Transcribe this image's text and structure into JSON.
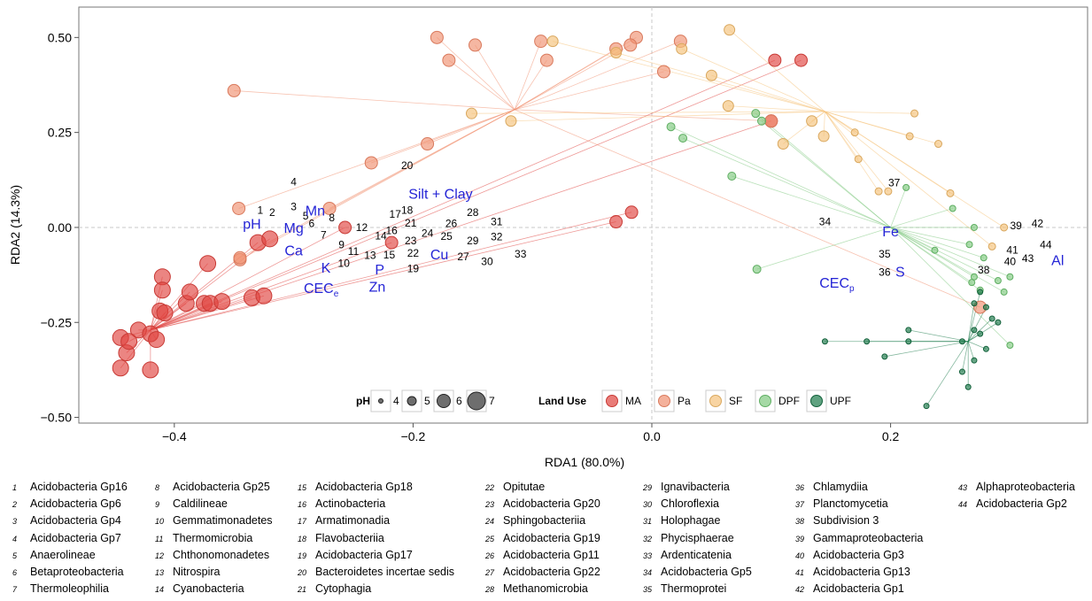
{
  "chart_data": {
    "type": "scatter",
    "xlabel": "RDA1 (80.0%)",
    "ylabel": "RDA2 (14.3%)",
    "xlim": [
      -0.48,
      0.365
    ],
    "ylim": [
      -0.515,
      0.58
    ],
    "x_ticks": [
      "−0.4",
      "−0.2",
      "0.0",
      "0.2"
    ],
    "y_ticks": [
      "0.50",
      "0.25",
      "0.00",
      "−0.25",
      "−0.50"
    ],
    "grid": false,
    "reference_lines": "dashed lines at x=0 and y=0",
    "colors": {
      "MA": "#e0443f",
      "Pa": "#f09070",
      "SF": "#f5c27a",
      "DPF": "#7fc97f",
      "UPF": "#1b7a4a"
    },
    "centroids": {
      "MA": [
        -0.42,
        -0.27
      ],
      "Pa": [
        -0.115,
        0.31
      ],
      "SF": [
        0.145,
        0.305
      ],
      "DPF": [
        0.2,
        0.0
      ],
      "UPF": [
        0.265,
        -0.3
      ]
    },
    "sites": {
      "MA": [
        [
          -0.445,
          -0.37
        ],
        [
          -0.44,
          -0.33
        ],
        [
          -0.445,
          -0.29
        ],
        [
          -0.42,
          -0.375
        ],
        [
          -0.43,
          -0.27
        ],
        [
          -0.438,
          -0.3
        ],
        [
          -0.42,
          -0.28
        ],
        [
          -0.415,
          -0.295
        ],
        [
          -0.412,
          -0.22
        ],
        [
          -0.408,
          -0.225
        ],
        [
          -0.41,
          -0.13
        ],
        [
          -0.41,
          -0.165
        ],
        [
          -0.39,
          -0.2
        ],
        [
          -0.387,
          -0.17
        ],
        [
          -0.375,
          -0.2
        ],
        [
          -0.37,
          -0.2
        ],
        [
          -0.36,
          -0.195
        ],
        [
          -0.335,
          -0.185
        ],
        [
          -0.325,
          -0.18
        ],
        [
          -0.33,
          -0.04
        ],
        [
          -0.32,
          -0.03
        ],
        [
          -0.257,
          0.0
        ],
        [
          -0.218,
          -0.04
        ],
        [
          -0.372,
          -0.095
        ],
        [
          -0.03,
          0.015
        ],
        [
          -0.017,
          0.04
        ],
        [
          0.103,
          0.44
        ],
        [
          0.125,
          0.44
        ],
        [
          0.1,
          0.28
        ]
      ],
      "Pa": [
        [
          -0.27,
          0.05
        ],
        [
          -0.35,
          0.36
        ],
        [
          -0.18,
          0.5
        ],
        [
          -0.17,
          0.44
        ],
        [
          -0.148,
          0.48
        ],
        [
          -0.093,
          0.49
        ],
        [
          -0.088,
          0.44
        ],
        [
          -0.03,
          0.47
        ],
        [
          -0.013,
          0.5
        ],
        [
          -0.018,
          0.48
        ],
        [
          0.01,
          0.41
        ],
        [
          0.024,
          0.49
        ],
        [
          -0.235,
          0.17
        ],
        [
          -0.188,
          0.22
        ],
        [
          -0.346,
          0.05
        ],
        [
          -0.345,
          -0.085
        ],
        [
          -0.345,
          -0.08
        ],
        [
          0.1,
          0.28
        ],
        [
          0.275,
          -0.21
        ]
      ],
      "SF": [
        [
          -0.151,
          0.3
        ],
        [
          -0.083,
          0.49
        ],
        [
          -0.118,
          0.28
        ],
        [
          -0.03,
          0.46
        ],
        [
          0.025,
          0.47
        ],
        [
          0.05,
          0.4
        ],
        [
          0.065,
          0.52
        ],
        [
          0.064,
          0.32
        ],
        [
          0.11,
          0.22
        ],
        [
          0.134,
          0.28
        ],
        [
          0.144,
          0.24
        ],
        [
          0.17,
          0.25
        ],
        [
          0.173,
          0.18
        ],
        [
          0.19,
          0.095
        ],
        [
          0.198,
          0.095
        ],
        [
          0.22,
          0.3
        ],
        [
          0.216,
          0.24
        ],
        [
          0.24,
          0.22
        ],
        [
          0.25,
          0.09
        ],
        [
          0.295,
          0.0
        ],
        [
          0.285,
          -0.05
        ]
      ],
      "DPF": [
        [
          0.016,
          0.265
        ],
        [
          0.026,
          0.235
        ],
        [
          0.087,
          0.3
        ],
        [
          0.092,
          0.28
        ],
        [
          0.067,
          0.135
        ],
        [
          0.213,
          0.105
        ],
        [
          0.252,
          0.05
        ],
        [
          0.27,
          0.0
        ],
        [
          0.237,
          -0.06
        ],
        [
          0.266,
          -0.045
        ],
        [
          0.278,
          -0.08
        ],
        [
          0.29,
          -0.14
        ],
        [
          0.3,
          -0.13
        ],
        [
          0.268,
          -0.145
        ],
        [
          0.275,
          -0.165
        ],
        [
          0.295,
          -0.17
        ],
        [
          0.3,
          -0.31
        ],
        [
          0.088,
          -0.11
        ],
        [
          0.27,
          -0.13
        ]
      ],
      "UPF": [
        [
          0.275,
          -0.17
        ],
        [
          0.28,
          -0.21
        ],
        [
          0.27,
          -0.2
        ],
        [
          0.285,
          -0.24
        ],
        [
          0.29,
          -0.25
        ],
        [
          0.275,
          -0.28
        ],
        [
          0.28,
          -0.32
        ],
        [
          0.27,
          -0.27
        ],
        [
          0.26,
          -0.3
        ],
        [
          0.27,
          -0.35
        ],
        [
          0.26,
          -0.38
        ],
        [
          0.265,
          -0.42
        ],
        [
          0.23,
          -0.47
        ],
        [
          0.215,
          -0.27
        ],
        [
          0.195,
          -0.34
        ],
        [
          0.18,
          -0.3
        ],
        [
          0.145,
          -0.3
        ],
        [
          0.215,
          -0.3
        ]
      ]
    },
    "taxa_labels": [
      {
        "n": "1",
        "x": -0.328,
        "y": 0.045
      },
      {
        "n": "2",
        "x": -0.318,
        "y": 0.04
      },
      {
        "n": "3",
        "x": -0.3,
        "y": 0.055
      },
      {
        "n": "4",
        "x": -0.3,
        "y": 0.12
      },
      {
        "n": "5",
        "x": -0.29,
        "y": 0.03
      },
      {
        "n": "6",
        "x": -0.285,
        "y": 0.01
      },
      {
        "n": "7",
        "x": -0.275,
        "y": -0.02
      },
      {
        "n": "8",
        "x": -0.268,
        "y": 0.025
      },
      {
        "n": "9",
        "x": -0.26,
        "y": -0.045
      },
      {
        "n": "10",
        "x": -0.258,
        "y": -0.095
      },
      {
        "n": "11",
        "x": -0.25,
        "y": -0.063
      },
      {
        "n": "12",
        "x": -0.243,
        "y": 0.0
      },
      {
        "n": "13",
        "x": -0.236,
        "y": -0.073
      },
      {
        "n": "14",
        "x": -0.227,
        "y": -0.022
      },
      {
        "n": "15",
        "x": -0.22,
        "y": -0.072
      },
      {
        "n": "16",
        "x": -0.218,
        "y": -0.008
      },
      {
        "n": "17",
        "x": -0.215,
        "y": 0.035
      },
      {
        "n": "18",
        "x": -0.205,
        "y": 0.045
      },
      {
        "n": "19",
        "x": -0.2,
        "y": -0.108
      },
      {
        "n": "20",
        "x": -0.205,
        "y": 0.163
      },
      {
        "n": "21",
        "x": -0.202,
        "y": 0.012
      },
      {
        "n": "22",
        "x": -0.2,
        "y": -0.068
      },
      {
        "n": "23",
        "x": -0.202,
        "y": -0.035
      },
      {
        "n": "24",
        "x": -0.188,
        "y": -0.015
      },
      {
        "n": "25",
        "x": -0.172,
        "y": -0.023
      },
      {
        "n": "26",
        "x": -0.168,
        "y": 0.01
      },
      {
        "n": "27",
        "x": -0.158,
        "y": -0.077
      },
      {
        "n": "28",
        "x": -0.15,
        "y": 0.04
      },
      {
        "n": "29",
        "x": -0.15,
        "y": -0.035
      },
      {
        "n": "30",
        "x": -0.138,
        "y": -0.09
      },
      {
        "n": "31",
        "x": -0.13,
        "y": 0.015
      },
      {
        "n": "32",
        "x": -0.13,
        "y": -0.025
      },
      {
        "n": "33",
        "x": -0.11,
        "y": -0.07
      },
      {
        "n": "34",
        "x": 0.145,
        "y": 0.015
      },
      {
        "n": "35",
        "x": 0.195,
        "y": -0.07
      },
      {
        "n": "36",
        "x": 0.195,
        "y": -0.118
      },
      {
        "n": "37",
        "x": 0.203,
        "y": 0.118
      },
      {
        "n": "38",
        "x": 0.278,
        "y": -0.112
      },
      {
        "n": "39",
        "x": 0.305,
        "y": 0.005
      },
      {
        "n": "40",
        "x": 0.3,
        "y": -0.09
      },
      {
        "n": "41",
        "x": 0.302,
        "y": -0.06
      },
      {
        "n": "42",
        "x": 0.323,
        "y": 0.01
      },
      {
        "n": "43",
        "x": 0.315,
        "y": -0.082
      },
      {
        "n": "44",
        "x": 0.33,
        "y": -0.045
      }
    ],
    "env_labels": [
      {
        "t": "Mn",
        "x": -0.282,
        "y": 0.045
      },
      {
        "t": "pH",
        "x": -0.335,
        "y": 0.01
      },
      {
        "t": "Mg",
        "x": -0.3,
        "y": 0.0
      },
      {
        "t": "Ca",
        "x": -0.3,
        "y": -0.06
      },
      {
        "t": "K",
        "x": -0.273,
        "y": -0.105
      },
      {
        "t": "CEC",
        "sub": "e",
        "x": -0.277,
        "y": -0.158
      },
      {
        "t": "P",
        "x": -0.228,
        "y": -0.11
      },
      {
        "t": "Zn",
        "x": -0.23,
        "y": -0.155
      },
      {
        "t": "Cu",
        "x": -0.178,
        "y": -0.07
      },
      {
        "t": "Silt + Clay",
        "x": -0.177,
        "y": 0.09
      },
      {
        "t": "Fe",
        "x": 0.2,
        "y": -0.01
      },
      {
        "t": "S",
        "x": 0.208,
        "y": -0.115
      },
      {
        "t": "CEC",
        "sub": "p",
        "x": 0.155,
        "y": -0.145
      },
      {
        "t": "Al",
        "x": 0.34,
        "y": -0.085
      }
    ],
    "legend": {
      "placement": "bottom-center",
      "ph_title": "pH",
      "ph_levels": [
        "4",
        "5",
        "6",
        "7"
      ],
      "land_use_title": "Land Use",
      "land_use": [
        "MA",
        "Pa",
        "SF",
        "DPF",
        "UPF"
      ]
    }
  },
  "taxa": [
    [
      "1",
      "Acidobacteria Gp16"
    ],
    [
      "2",
      "Acidobacteria Gp6"
    ],
    [
      "3",
      "Acidobacteria Gp4"
    ],
    [
      "4",
      "Acidobacteria Gp7"
    ],
    [
      "5",
      "Anaerolineae"
    ],
    [
      "6",
      "Betaproteobacteria"
    ],
    [
      "7",
      "Thermoleophilia"
    ],
    [
      "8",
      "Acidobacteria Gp25"
    ],
    [
      "9",
      "Caldilineae"
    ],
    [
      "10",
      "Gemmatimonadetes"
    ],
    [
      "11",
      "Thermomicrobia"
    ],
    [
      "12",
      "Chthonomonadetes"
    ],
    [
      "13",
      "Nitrospira"
    ],
    [
      "14",
      "Cyanobacteria"
    ],
    [
      "15",
      "Acidobacteria Gp18"
    ],
    [
      "16",
      "Actinobacteria"
    ],
    [
      "17",
      "Armatimonadia"
    ],
    [
      "18",
      "Flavobacteriia"
    ],
    [
      "19",
      "Acidobacteria Gp17"
    ],
    [
      "20",
      "Bacteroidetes  incertae sedis"
    ],
    [
      "21",
      "Cytophagia"
    ],
    [
      "22",
      "Opitutae"
    ],
    [
      "23",
      "Acidobacteria Gp20"
    ],
    [
      "24",
      "Sphingobacteriia"
    ],
    [
      "25",
      "Acidobacteria Gp19"
    ],
    [
      "26",
      "Acidobacteria Gp11"
    ],
    [
      "27",
      "Acidobacteria Gp22"
    ],
    [
      "28",
      "Methanomicrobia"
    ],
    [
      "29",
      "Ignavibacteria"
    ],
    [
      "30",
      "Chloroflexia"
    ],
    [
      "31",
      "Holophagae"
    ],
    [
      "32",
      "Phycisphaerae"
    ],
    [
      "33",
      "Ardenticatenia"
    ],
    [
      "34",
      "Acidobacteria Gp5"
    ],
    [
      "35",
      "Thermoprotei"
    ],
    [
      "36",
      "Chlamydiia"
    ],
    [
      "37",
      "Planctomycetia"
    ],
    [
      "38",
      "Subdivision 3"
    ],
    [
      "39",
      "Gammaproteobacteria"
    ],
    [
      "40",
      "Acidobacteria Gp3"
    ],
    [
      "41",
      "Acidobacteria Gp13"
    ],
    [
      "42",
      "Acidobacteria Gp1"
    ],
    [
      "43",
      "Alphaproteobacteria"
    ],
    [
      "44",
      "Acidobacteria Gp2"
    ]
  ]
}
